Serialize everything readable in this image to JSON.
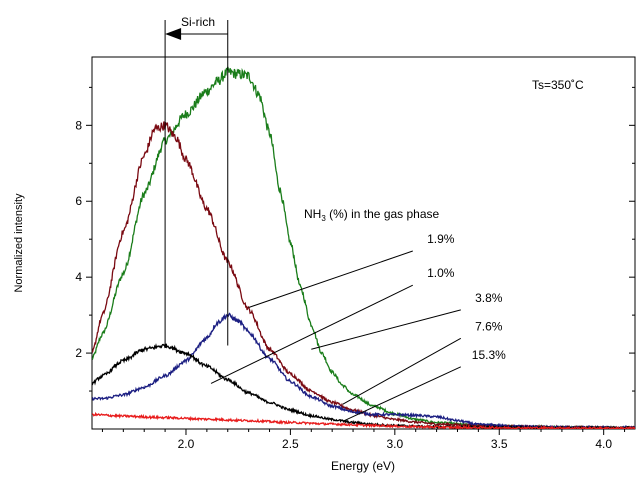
{
  "chart_data": {
    "type": "line",
    "title": "",
    "xlabel": "Energy (eV)",
    "ylabel": "Normalized intensity",
    "xlim": [
      1.55,
      4.15
    ],
    "ylim": [
      0,
      9.8
    ],
    "xticks": [
      2.0,
      2.5,
      3.0,
      3.5,
      4.0
    ],
    "xtick_labels": [
      "2.0",
      "2.5",
      "3.0",
      "3.5",
      "4.0"
    ],
    "yticks": [
      2,
      4,
      6,
      8
    ],
    "ytick_labels": [
      "2",
      "4",
      "6",
      "8"
    ],
    "grid": false,
    "colors": {
      "green": "#1a7d1a",
      "darkred": "#7a0a12",
      "navy": "#1c1f82",
      "black": "#000000",
      "red": "#e81c1c"
    },
    "annotations": {
      "temperature": "Ts=350˚C",
      "si_rich": "Si-rich",
      "legend_title": "NH3 (%) in the gas phase",
      "legend_title_prefix": "NH",
      "legend_title_subscript": "3",
      "legend_title_suffix": " (%) in the gas phase",
      "vertical_lines_x": [
        1.9,
        2.2
      ],
      "arrow_from_x": 2.2,
      "arrow_to_x": 1.9
    },
    "series": [
      {
        "label": "1.0%",
        "color": "green",
        "x": [
          1.55,
          1.6,
          1.7,
          1.8,
          1.9,
          2.0,
          2.1,
          2.15,
          2.2,
          2.25,
          2.3,
          2.35,
          2.4,
          2.45,
          2.5,
          2.55,
          2.6,
          2.65,
          2.7,
          2.75,
          2.8,
          2.9,
          3.0,
          3.1,
          3.2,
          3.4,
          3.6,
          3.8,
          4.0,
          4.15
        ],
        "y": [
          1.85,
          2.5,
          4.1,
          6.2,
          7.6,
          8.3,
          8.9,
          9.15,
          9.4,
          9.35,
          9.3,
          8.8,
          7.8,
          6.3,
          4.9,
          3.7,
          2.75,
          2.0,
          1.5,
          1.15,
          0.9,
          0.6,
          0.4,
          0.25,
          0.17,
          0.1,
          0.07,
          0.05,
          0.04,
          0.03
        ]
      },
      {
        "label": "1.9%",
        "color": "darkred",
        "x": [
          1.55,
          1.6,
          1.7,
          1.8,
          1.85,
          1.9,
          1.95,
          2.0,
          2.1,
          2.2,
          2.3,
          2.4,
          2.5,
          2.6,
          2.7,
          2.8,
          2.9,
          3.0,
          3.1,
          3.2,
          3.4,
          3.6,
          3.8,
          4.0,
          4.15
        ],
        "y": [
          2.0,
          3.0,
          5.2,
          7.2,
          7.9,
          8.0,
          7.7,
          7.1,
          5.8,
          4.4,
          3.15,
          2.1,
          1.45,
          1.0,
          0.7,
          0.5,
          0.35,
          0.25,
          0.18,
          0.13,
          0.09,
          0.07,
          0.05,
          0.04,
          0.04
        ]
      },
      {
        "label": "3.8%",
        "color": "navy",
        "x": [
          1.55,
          1.6,
          1.7,
          1.8,
          1.9,
          2.0,
          2.1,
          2.15,
          2.2,
          2.25,
          2.3,
          2.4,
          2.5,
          2.6,
          2.7,
          2.8,
          2.9,
          3.0,
          3.1,
          3.2,
          3.3,
          3.4,
          3.6,
          3.8,
          4.0,
          4.15
        ],
        "y": [
          0.8,
          0.8,
          0.9,
          1.1,
          1.4,
          1.8,
          2.4,
          2.8,
          3.0,
          2.85,
          2.55,
          1.85,
          1.25,
          0.85,
          0.6,
          0.45,
          0.38,
          0.38,
          0.36,
          0.32,
          0.22,
          0.12,
          0.07,
          0.05,
          0.04,
          0.04
        ]
      },
      {
        "label": "7.6%",
        "color": "black",
        "x": [
          1.55,
          1.6,
          1.7,
          1.8,
          1.9,
          2.0,
          2.1,
          2.2,
          2.3,
          2.4,
          2.5,
          2.6,
          2.7,
          2.8,
          2.9,
          3.0,
          3.2,
          3.4,
          3.6,
          3.8,
          4.0,
          4.15
        ],
        "y": [
          1.2,
          1.4,
          1.8,
          2.1,
          2.2,
          2.0,
          1.65,
          1.3,
          0.95,
          0.7,
          0.5,
          0.35,
          0.25,
          0.17,
          0.12,
          0.09,
          0.06,
          0.05,
          0.04,
          0.03,
          0.03,
          0.03
        ]
      },
      {
        "label": "15.3%",
        "color": "red",
        "x": [
          1.55,
          1.7,
          1.9,
          2.1,
          2.3,
          2.5,
          2.7,
          2.9,
          3.1,
          3.3,
          3.6,
          4.0,
          4.15
        ],
        "y": [
          0.38,
          0.34,
          0.3,
          0.26,
          0.22,
          0.17,
          0.13,
          0.09,
          0.06,
          0.04,
          0.03,
          0.02,
          0.02
        ]
      }
    ],
    "leader_lines": [
      {
        "label": "1.9%",
        "label_x": 3.22,
        "label_y": 4.9,
        "to_x": 2.3,
        "to_y": 3.2
      },
      {
        "label": "1.0%",
        "label_x": 3.22,
        "label_y": 4.0,
        "to_x": 2.12,
        "to_y": 1.2
      },
      {
        "label": "3.8%",
        "label_x": 3.45,
        "label_y": 3.35,
        "to_x": 2.6,
        "to_y": 2.1
      },
      {
        "label": "7.6%",
        "label_x": 3.45,
        "label_y": 2.6,
        "to_x": 2.75,
        "to_y": 0.65
      },
      {
        "label": "15.3%",
        "label_x": 3.45,
        "label_y": 1.85,
        "to_x": 2.75,
        "to_y": 0.2
      }
    ]
  }
}
